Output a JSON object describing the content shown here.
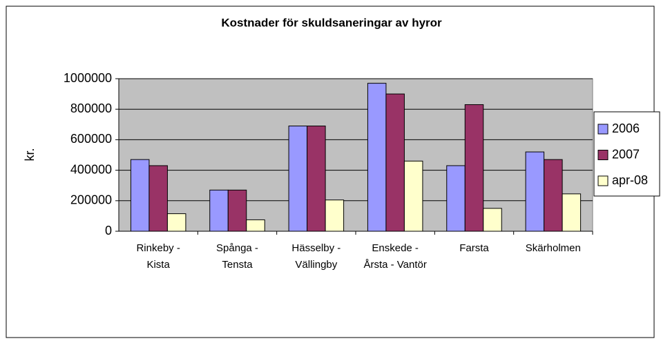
{
  "chart_data": {
    "type": "bar",
    "title": "Kostnader för skuldsaneringar av hyror",
    "y_label": "kr.",
    "categories": [
      "Rinkeby - Kista",
      "Spånga - Tensta",
      "Hässelby - Vällingby",
      "Enskede - Årsta - Vantör",
      "Farsta",
      "Skärholmen"
    ],
    "series": [
      {
        "name": "2006",
        "color": "#9999ff",
        "values": [
          470000,
          270000,
          690000,
          970000,
          430000,
          520000
        ]
      },
      {
        "name": "2007",
        "color": "#993366",
        "values": [
          430000,
          270000,
          690000,
          900000,
          830000,
          470000
        ]
      },
      {
        "name": "apr-08",
        "color": "#ffffcc",
        "values": [
          115000,
          75000,
          205000,
          460000,
          150000,
          245000
        ]
      }
    ],
    "ylim": [
      0,
      1000000
    ],
    "yticks": [
      0,
      200000,
      400000,
      600000,
      800000,
      1000000
    ],
    "grid": true,
    "legend": "right"
  }
}
